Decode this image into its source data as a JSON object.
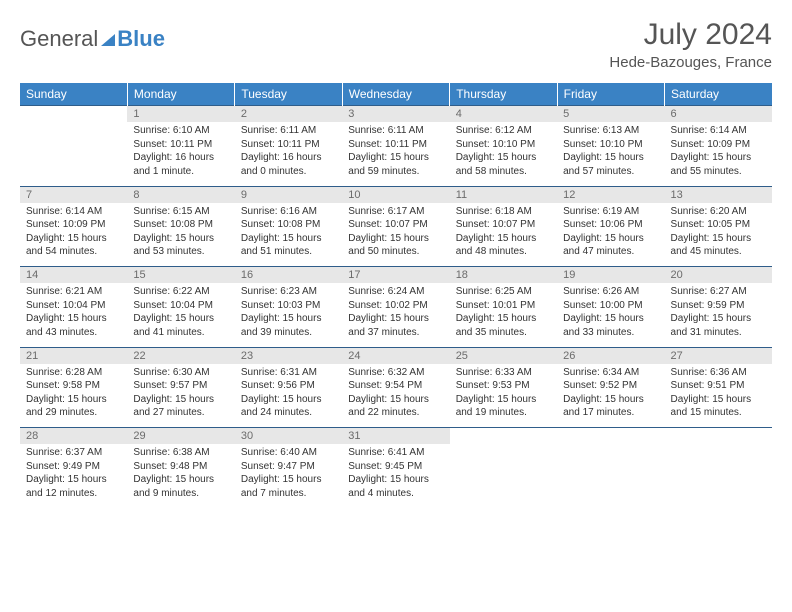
{
  "logo": {
    "word1": "General",
    "word2": "Blue"
  },
  "title": "July 2024",
  "location": "Hede-Bazouges, France",
  "colors": {
    "header_bg": "#3a82c4",
    "header_text": "#ffffff",
    "daynum_bg": "#e7e7e7",
    "daynum_text": "#6b6b6b",
    "row_divider": "#2f5d8a",
    "body_text": "#333333",
    "title_text": "#555555",
    "page_bg": "#ffffff"
  },
  "typography": {
    "title_fontsize": 30,
    "location_fontsize": 15,
    "weekday_fontsize": 12,
    "daynum_fontsize": 11,
    "detail_fontsize": 10
  },
  "weekdays": [
    "Sunday",
    "Monday",
    "Tuesday",
    "Wednesday",
    "Thursday",
    "Friday",
    "Saturday"
  ],
  "weeks": [
    [
      null,
      {
        "n": "1",
        "sr": "Sunrise: 6:10 AM",
        "ss": "Sunset: 10:11 PM",
        "dl": "Daylight: 16 hours and 1 minute."
      },
      {
        "n": "2",
        "sr": "Sunrise: 6:11 AM",
        "ss": "Sunset: 10:11 PM",
        "dl": "Daylight: 16 hours and 0 minutes."
      },
      {
        "n": "3",
        "sr": "Sunrise: 6:11 AM",
        "ss": "Sunset: 10:11 PM",
        "dl": "Daylight: 15 hours and 59 minutes."
      },
      {
        "n": "4",
        "sr": "Sunrise: 6:12 AM",
        "ss": "Sunset: 10:10 PM",
        "dl": "Daylight: 15 hours and 58 minutes."
      },
      {
        "n": "5",
        "sr": "Sunrise: 6:13 AM",
        "ss": "Sunset: 10:10 PM",
        "dl": "Daylight: 15 hours and 57 minutes."
      },
      {
        "n": "6",
        "sr": "Sunrise: 6:14 AM",
        "ss": "Sunset: 10:09 PM",
        "dl": "Daylight: 15 hours and 55 minutes."
      }
    ],
    [
      {
        "n": "7",
        "sr": "Sunrise: 6:14 AM",
        "ss": "Sunset: 10:09 PM",
        "dl": "Daylight: 15 hours and 54 minutes."
      },
      {
        "n": "8",
        "sr": "Sunrise: 6:15 AM",
        "ss": "Sunset: 10:08 PM",
        "dl": "Daylight: 15 hours and 53 minutes."
      },
      {
        "n": "9",
        "sr": "Sunrise: 6:16 AM",
        "ss": "Sunset: 10:08 PM",
        "dl": "Daylight: 15 hours and 51 minutes."
      },
      {
        "n": "10",
        "sr": "Sunrise: 6:17 AM",
        "ss": "Sunset: 10:07 PM",
        "dl": "Daylight: 15 hours and 50 minutes."
      },
      {
        "n": "11",
        "sr": "Sunrise: 6:18 AM",
        "ss": "Sunset: 10:07 PM",
        "dl": "Daylight: 15 hours and 48 minutes."
      },
      {
        "n": "12",
        "sr": "Sunrise: 6:19 AM",
        "ss": "Sunset: 10:06 PM",
        "dl": "Daylight: 15 hours and 47 minutes."
      },
      {
        "n": "13",
        "sr": "Sunrise: 6:20 AM",
        "ss": "Sunset: 10:05 PM",
        "dl": "Daylight: 15 hours and 45 minutes."
      }
    ],
    [
      {
        "n": "14",
        "sr": "Sunrise: 6:21 AM",
        "ss": "Sunset: 10:04 PM",
        "dl": "Daylight: 15 hours and 43 minutes."
      },
      {
        "n": "15",
        "sr": "Sunrise: 6:22 AM",
        "ss": "Sunset: 10:04 PM",
        "dl": "Daylight: 15 hours and 41 minutes."
      },
      {
        "n": "16",
        "sr": "Sunrise: 6:23 AM",
        "ss": "Sunset: 10:03 PM",
        "dl": "Daylight: 15 hours and 39 minutes."
      },
      {
        "n": "17",
        "sr": "Sunrise: 6:24 AM",
        "ss": "Sunset: 10:02 PM",
        "dl": "Daylight: 15 hours and 37 minutes."
      },
      {
        "n": "18",
        "sr": "Sunrise: 6:25 AM",
        "ss": "Sunset: 10:01 PM",
        "dl": "Daylight: 15 hours and 35 minutes."
      },
      {
        "n": "19",
        "sr": "Sunrise: 6:26 AM",
        "ss": "Sunset: 10:00 PM",
        "dl": "Daylight: 15 hours and 33 minutes."
      },
      {
        "n": "20",
        "sr": "Sunrise: 6:27 AM",
        "ss": "Sunset: 9:59 PM",
        "dl": "Daylight: 15 hours and 31 minutes."
      }
    ],
    [
      {
        "n": "21",
        "sr": "Sunrise: 6:28 AM",
        "ss": "Sunset: 9:58 PM",
        "dl": "Daylight: 15 hours and 29 minutes."
      },
      {
        "n": "22",
        "sr": "Sunrise: 6:30 AM",
        "ss": "Sunset: 9:57 PM",
        "dl": "Daylight: 15 hours and 27 minutes."
      },
      {
        "n": "23",
        "sr": "Sunrise: 6:31 AM",
        "ss": "Sunset: 9:56 PM",
        "dl": "Daylight: 15 hours and 24 minutes."
      },
      {
        "n": "24",
        "sr": "Sunrise: 6:32 AM",
        "ss": "Sunset: 9:54 PM",
        "dl": "Daylight: 15 hours and 22 minutes."
      },
      {
        "n": "25",
        "sr": "Sunrise: 6:33 AM",
        "ss": "Sunset: 9:53 PM",
        "dl": "Daylight: 15 hours and 19 minutes."
      },
      {
        "n": "26",
        "sr": "Sunrise: 6:34 AM",
        "ss": "Sunset: 9:52 PM",
        "dl": "Daylight: 15 hours and 17 minutes."
      },
      {
        "n": "27",
        "sr": "Sunrise: 6:36 AM",
        "ss": "Sunset: 9:51 PM",
        "dl": "Daylight: 15 hours and 15 minutes."
      }
    ],
    [
      {
        "n": "28",
        "sr": "Sunrise: 6:37 AM",
        "ss": "Sunset: 9:49 PM",
        "dl": "Daylight: 15 hours and 12 minutes."
      },
      {
        "n": "29",
        "sr": "Sunrise: 6:38 AM",
        "ss": "Sunset: 9:48 PM",
        "dl": "Daylight: 15 hours and 9 minutes."
      },
      {
        "n": "30",
        "sr": "Sunrise: 6:40 AM",
        "ss": "Sunset: 9:47 PM",
        "dl": "Daylight: 15 hours and 7 minutes."
      },
      {
        "n": "31",
        "sr": "Sunrise: 6:41 AM",
        "ss": "Sunset: 9:45 PM",
        "dl": "Daylight: 15 hours and 4 minutes."
      },
      null,
      null,
      null
    ]
  ]
}
